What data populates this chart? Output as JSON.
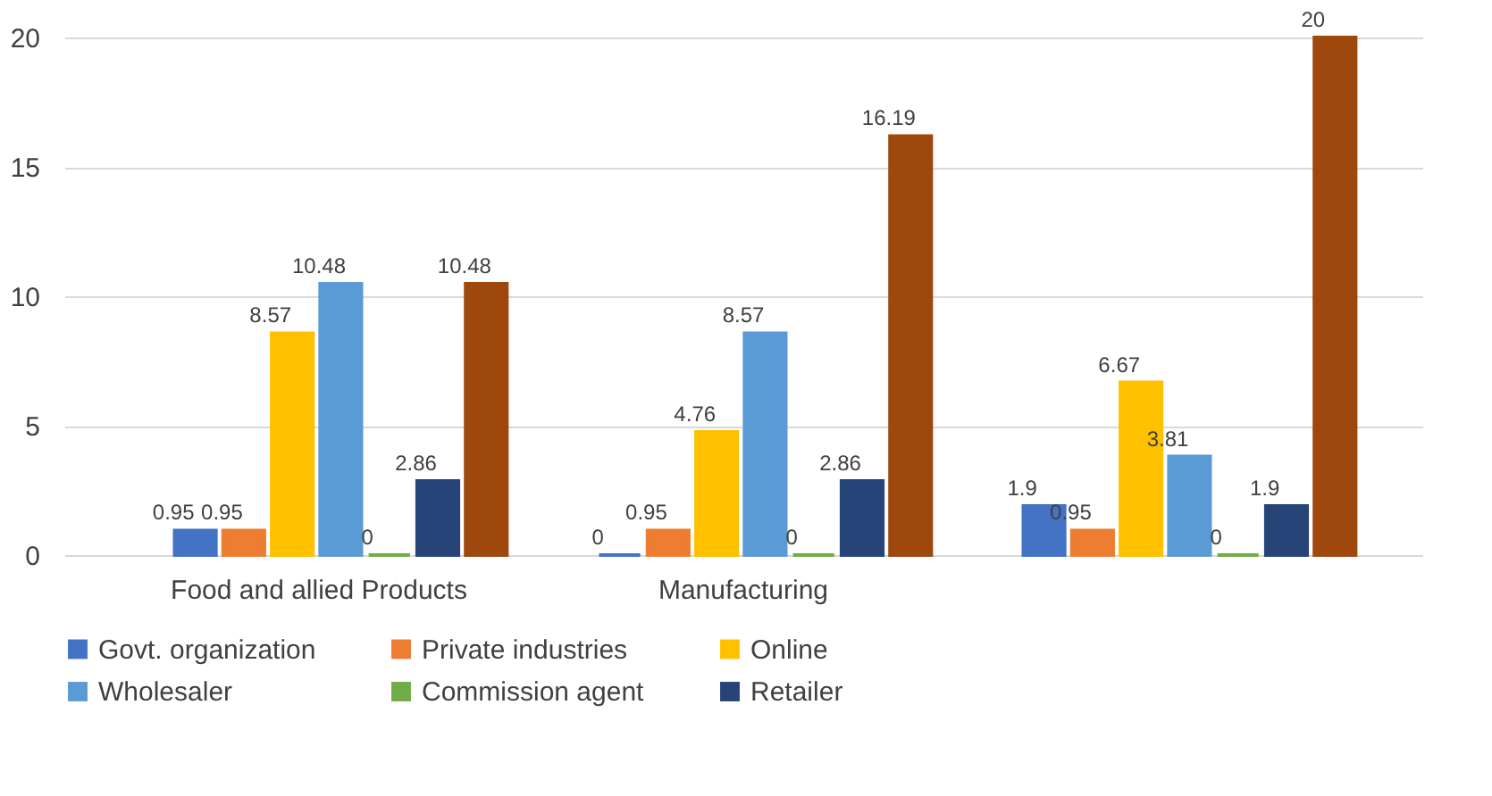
{
  "chart_data": {
    "type": "bar",
    "categories": [
      "Food and allied Products",
      "Manufacturing",
      null
    ],
    "series": [
      {
        "name": "Govt. organization",
        "color": "#4472c4",
        "values": [
          0.95,
          0,
          1.9
        ]
      },
      {
        "name": "Private industries",
        "color": "#ed7d31",
        "values": [
          0.95,
          0.95,
          0.95
        ]
      },
      {
        "name": "Online",
        "color": "#ffc000",
        "values": [
          8.57,
          4.76,
          6.67
        ]
      },
      {
        "name": "Wholesaler",
        "color": "#5b9bd5",
        "values": [
          10.48,
          8.57,
          3.81
        ]
      },
      {
        "name": "Commission agent",
        "color": "#70ad47",
        "values": [
          0,
          0,
          0
        ]
      },
      {
        "name": "Retailer",
        "color": "#264478",
        "values": [
          2.86,
          2.86,
          1.9
        ]
      },
      {
        "color": "#9e480e",
        "values": [
          10.48,
          16.19,
          20
        ]
      }
    ],
    "ylim": [
      0,
      20
    ],
    "yticks": [
      0,
      5,
      10,
      15,
      20
    ],
    "grid": "y",
    "legend": "bottom",
    "data_labels": true
  }
}
